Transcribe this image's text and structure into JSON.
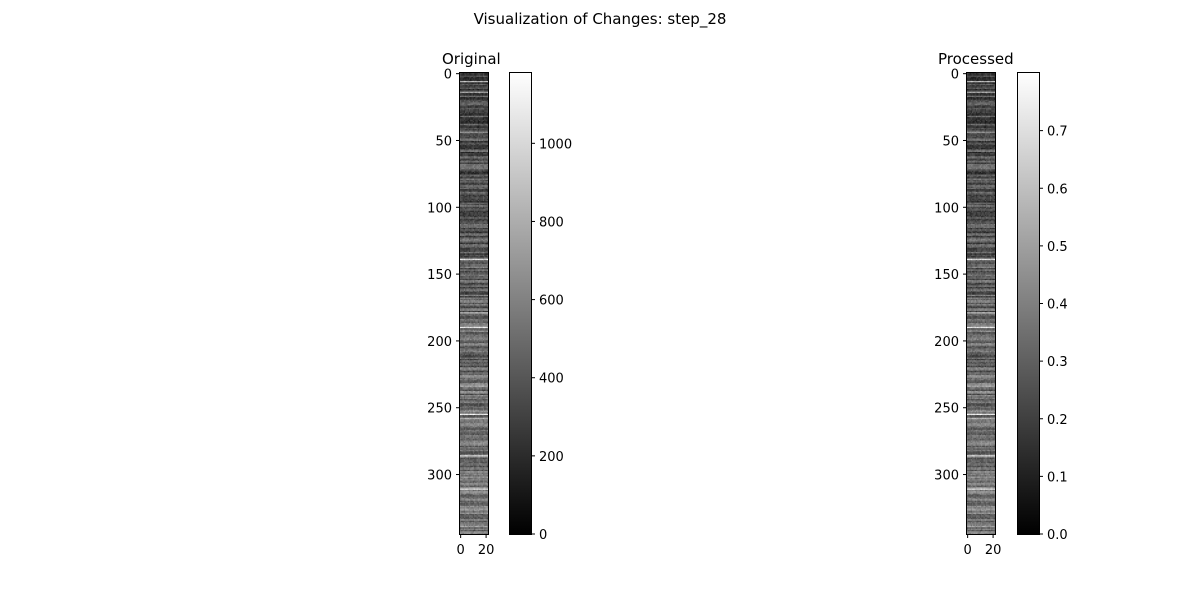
{
  "figure": {
    "title": "Visualization of Changes: step_28"
  },
  "chart_data": [
    {
      "type": "heatmap",
      "title": "Original",
      "colormap": "gray",
      "rows": 345,
      "cols": 22,
      "x_ticks": [
        0,
        20
      ],
      "y_ticks": [
        0,
        50,
        100,
        150,
        200,
        250,
        300
      ],
      "colorbar": {
        "range": [
          0,
          1180
        ],
        "ticks": [
          0,
          200,
          400,
          600,
          800,
          1000
        ]
      }
    },
    {
      "type": "heatmap",
      "title": "Processed",
      "colormap": "gray",
      "rows": 345,
      "cols": 22,
      "x_ticks": [
        0,
        20
      ],
      "y_ticks": [
        0,
        50,
        100,
        150,
        200,
        250,
        300
      ],
      "colorbar": {
        "range": [
          0,
          0.8
        ],
        "ticks": [
          0.0,
          0.1,
          0.2,
          0.3,
          0.4,
          0.5,
          0.6,
          0.7
        ]
      }
    }
  ]
}
